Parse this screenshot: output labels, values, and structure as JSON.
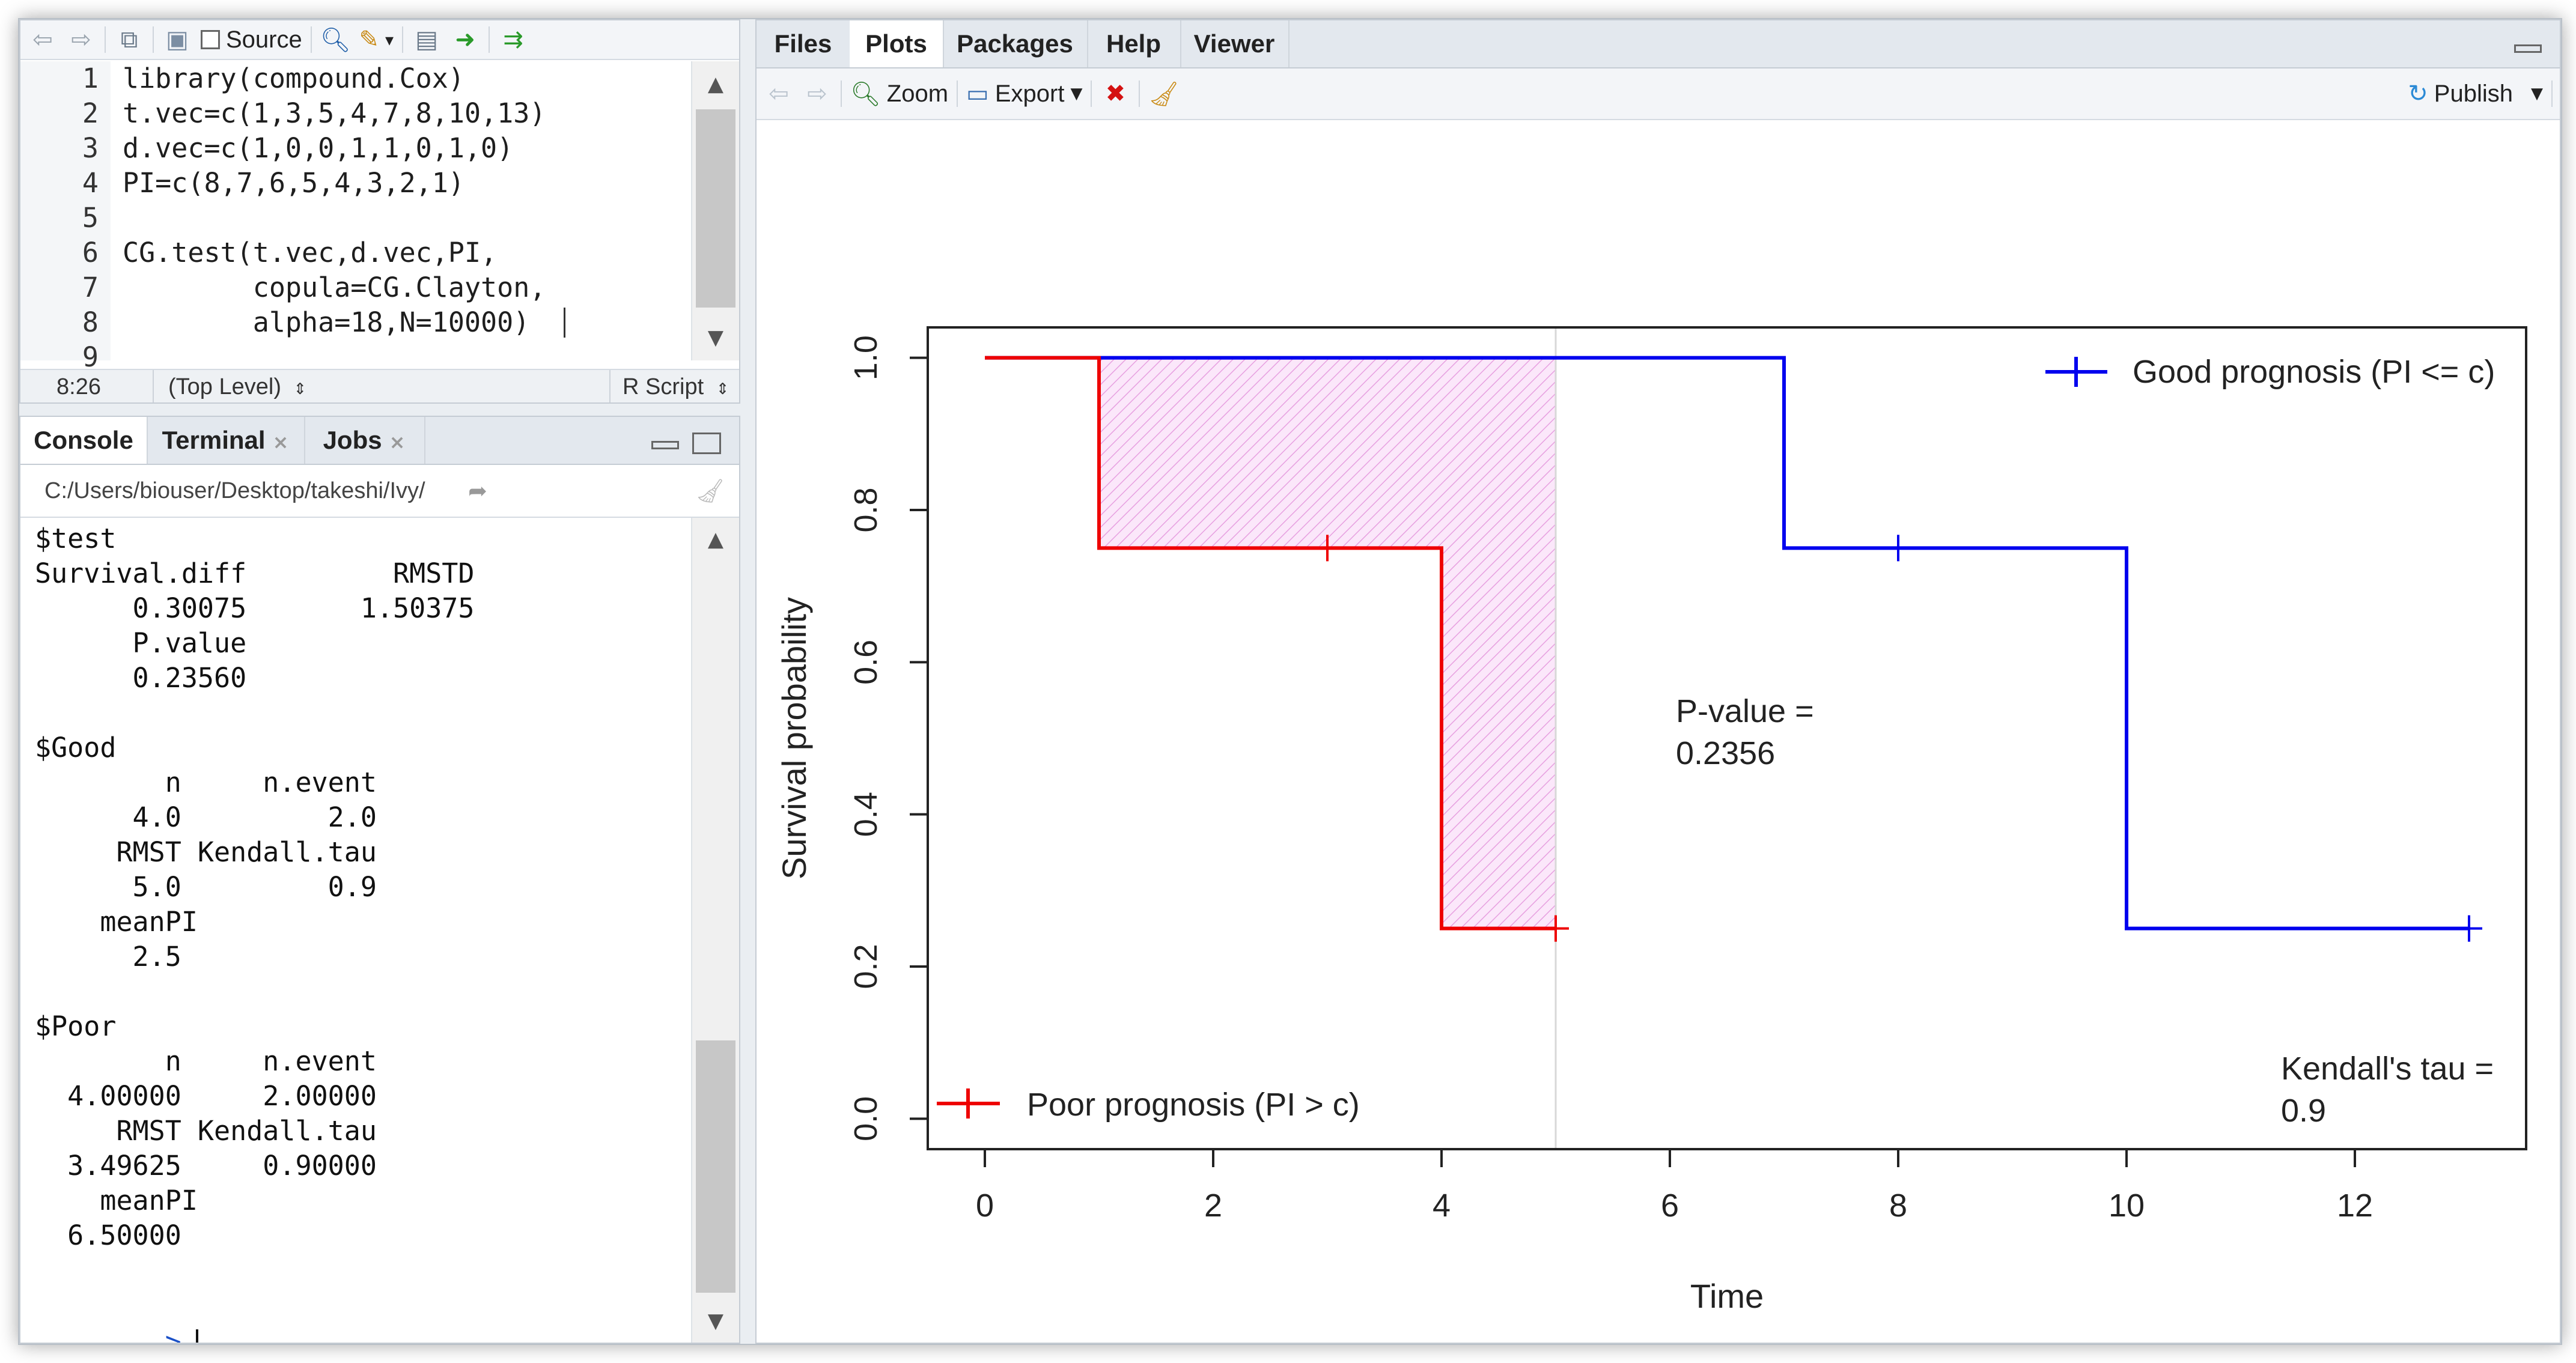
{
  "editor": {
    "toolbar": {
      "source_label": "Source"
    },
    "lines": [
      {
        "num": "1",
        "text": "library(compound.Cox)"
      },
      {
        "num": "2",
        "text": "t.vec=c(1,3,5,4,7,8,10,13)"
      },
      {
        "num": "3",
        "text": "d.vec=c(1,0,0,1,1,0,1,0)"
      },
      {
        "num": "4",
        "text": "PI=c(8,7,6,5,4,3,2,1)"
      },
      {
        "num": "5",
        "text": ""
      },
      {
        "num": "6",
        "text": "CG.test(t.vec,d.vec,PI,"
      },
      {
        "num": "7",
        "text": "        copula=CG.Clayton,"
      },
      {
        "num": "8",
        "text": "        alpha=18,N=10000)"
      },
      {
        "num": "9",
        "text": ""
      }
    ],
    "status": {
      "position": "8:26",
      "scope": "(Top Level)",
      "filetype": "R Script"
    }
  },
  "console": {
    "tabs": [
      "Console",
      "Terminal",
      "Jobs"
    ],
    "path": "C:/Users/biouser/Desktop/takeshi/Ivy/",
    "lines": [
      "$test",
      "Survival.diff         RMSTD",
      "      0.30075       1.50375",
      "      P.value",
      "      0.23560",
      "",
      "$Good",
      "        n     n.event",
      "      4.0         2.0",
      "     RMST Kendall.tau",
      "      5.0         0.9",
      "    meanPI",
      "      2.5",
      "",
      "$Poor",
      "        n     n.event",
      "  4.00000     2.00000",
      "     RMST Kendall.tau",
      "  3.49625     0.90000",
      "    meanPI",
      "  6.50000"
    ],
    "prompt": ">"
  },
  "viewer": {
    "tabs": [
      "Files",
      "Plots",
      "Packages",
      "Help",
      "Viewer"
    ],
    "toolbar": {
      "zoom_label": "Zoom",
      "export_label": "Export",
      "publish_label": "Publish"
    }
  },
  "chart_data": {
    "type": "line",
    "xlabel": "Time",
    "ylabel": "Survival probability",
    "xlim": [
      -0.5,
      13.5
    ],
    "ylim": [
      -0.04,
      1.04
    ],
    "x_ticks": [
      "0",
      "2",
      "4",
      "6",
      "8",
      "10",
      "12"
    ],
    "y_ticks": [
      "0.0",
      "0.2",
      "0.4",
      "0.6",
      "0.8",
      "1.0"
    ],
    "series": [
      {
        "name": "Good prognosis (PI <= c)",
        "color": "#0000ee",
        "step_x": [
          0,
          7,
          7,
          10,
          10,
          13
        ],
        "step_y": [
          1.0,
          1.0,
          0.75,
          0.75,
          0.25,
          0.25
        ],
        "censor_x": [
          8,
          13
        ],
        "censor_y": [
          0.75,
          0.25
        ]
      },
      {
        "name": "Poor prognosis (PI > c)",
        "color": "#ee0000",
        "step_x": [
          0,
          1,
          1,
          4,
          4,
          5
        ],
        "step_y": [
          1.0,
          1.0,
          0.75,
          0.75,
          0.25,
          0.25
        ],
        "censor_x": [
          3,
          5
        ],
        "censor_y": [
          0.75,
          0.25
        ]
      }
    ],
    "shaded_region": {
      "color": "#e7a0e0",
      "x_max": 5
    },
    "vline_x": 5,
    "annotations": {
      "pvalue_line1": "P-value =",
      "pvalue_line2": "0.2356",
      "tau_line1": "Kendall's tau =",
      "tau_line2": "0.9"
    },
    "legend_top_right": "Good prognosis (PI <= c)",
    "legend_bottom_left": "Poor prognosis (PI > c)"
  }
}
